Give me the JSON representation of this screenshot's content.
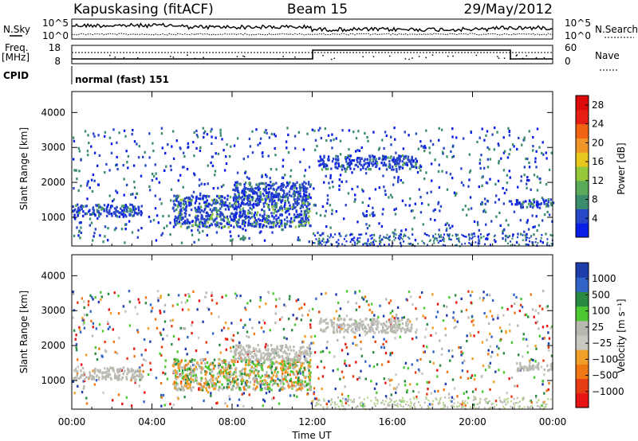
{
  "header": {
    "station": "Kapuskasing (fitACF)",
    "beam": "Beam 15",
    "date": "29/May/2012"
  },
  "top_panels": {
    "nsky_label": "N.Sky",
    "nsky_ticks": [
      "10^5",
      "10^0"
    ],
    "nsearch_label": "N.Search",
    "nsearch_ticks": [
      "10^5",
      "10^0"
    ],
    "freq_label": "Freq.",
    "freq_unit": "[MHz]",
    "freq_ticks": [
      "18",
      "8"
    ],
    "nave_label": "Nave",
    "nave_ticks": [
      "60",
      "0"
    ],
    "cpid_label": "CPID",
    "cpid_value": "normal (fast) 151"
  },
  "colors": {
    "power": [
      "#0a1ee6",
      "#2846c8",
      "#3c8c6e",
      "#5aaa5a",
      "#96c83c",
      "#e6c81e",
      "#f09628",
      "#f06414",
      "#e61e14",
      "#dc0a0a"
    ],
    "velocity": [
      "#1e3caa",
      "#3264c8",
      "#2a8a40",
      "#4cc832",
      "#b8b8b0",
      "#c8c8c0",
      "#f0a028",
      "#f07814",
      "#e63c14",
      "#e61414"
    ],
    "velocity_ground": "#b9b9b1"
  },
  "chart_data": [
    {
      "type": "heatmap",
      "name_panel": "power",
      "ylabel": "Slant Range [km]",
      "xlabel": "",
      "x_ticks": [
        "00:00",
        "04:00",
        "08:00",
        "12:00",
        "16:00",
        "20:00",
        "00:00"
      ],
      "x_range_hours": [
        0,
        24
      ],
      "y_ticks": [
        1000,
        2000,
        3000,
        4000
      ],
      "ylim": [
        180,
        4600
      ],
      "colorbar_label": "Power [dB]",
      "colorbar_ticks": [
        4,
        8,
        12,
        16,
        20,
        24,
        28
      ],
      "colorbar_range": [
        0,
        30
      ],
      "echo_regions": [
        {
          "t": [
            0.0,
            3.5
          ],
          "r": [
            1050,
            1400
          ],
          "value": 6
        },
        {
          "t": [
            5.0,
            11.9
          ],
          "r": [
            750,
            1650
          ],
          "value": 10
        },
        {
          "t": [
            8.0,
            11.9
          ],
          "r": [
            1600,
            2050
          ],
          "value": 7
        },
        {
          "t": [
            12.3,
            17.2
          ],
          "r": [
            2400,
            2800
          ],
          "value": 5
        },
        {
          "t": [
            22.1,
            24.0
          ],
          "r": [
            1300,
            1550
          ],
          "value": 5
        },
        {
          "t": [
            14.3,
            15.0
          ],
          "r": [
            1050,
            1150
          ],
          "value": 5
        }
      ]
    },
    {
      "type": "heatmap",
      "name_panel": "velocity",
      "ylabel": "Slant Range [km]",
      "xlabel": "Time UT",
      "x_ticks": [
        "00:00",
        "04:00",
        "08:00",
        "12:00",
        "16:00",
        "20:00",
        "00:00"
      ],
      "x_range_hours": [
        0,
        24
      ],
      "y_ticks": [
        1000,
        2000,
        3000,
        4000
      ],
      "ylim": [
        180,
        4600
      ],
      "colorbar_label": "Velocity [m s⁻¹]",
      "colorbar_ticks": [
        "1000",
        "500",
        "100",
        "25",
        "−25",
        "−100",
        "−500",
        "−1000"
      ],
      "echo_regions": [
        {
          "t": [
            0.0,
            3.5
          ],
          "r": [
            1050,
            1400
          ],
          "value": 0
        },
        {
          "t": [
            5.0,
            11.9
          ],
          "r": [
            750,
            1650
          ],
          "value": -150
        },
        {
          "t": [
            8.0,
            11.9
          ],
          "r": [
            1600,
            2050
          ],
          "value": 0
        },
        {
          "t": [
            12.3,
            17.2
          ],
          "r": [
            2400,
            2800
          ],
          "value": 0
        },
        {
          "t": [
            22.1,
            24.0
          ],
          "r": [
            1300,
            1550
          ],
          "value": -40
        }
      ]
    }
  ]
}
